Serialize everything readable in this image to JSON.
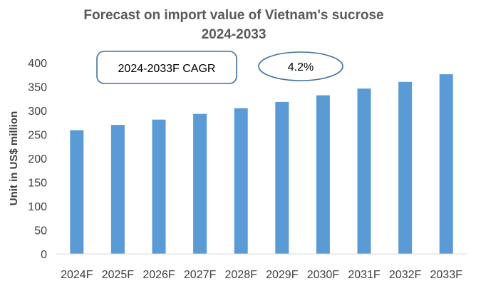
{
  "chart_data": {
    "type": "bar",
    "title": "Forecast on import value of Vietnam's sucrose",
    "subtitle": "2024-2033",
    "xlabel": "",
    "ylabel": "Unit in US$ million",
    "categories": [
      "2024F",
      "2025F",
      "2026F",
      "2027F",
      "2028F",
      "2029F",
      "2030F",
      "2031F",
      "2032F",
      "2033F"
    ],
    "values": [
      259,
      270,
      281,
      293,
      305,
      318,
      332,
      346,
      360,
      376
    ],
    "ylim": [
      0,
      400
    ],
    "yticks": [
      0,
      50,
      100,
      150,
      200,
      250,
      300,
      350,
      400
    ],
    "grid": false,
    "legend": "none",
    "bar_color": "#5B9BD5",
    "annotations": {
      "cagr_label": "2024-2033F CAGR",
      "cagr_value": "4.2%"
    }
  }
}
